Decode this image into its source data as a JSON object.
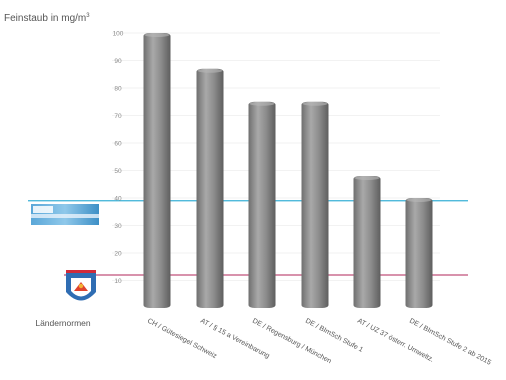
{
  "chart_data": {
    "type": "bar",
    "ylabel": "Feinstaub in mg/m",
    "ylabel_superscript": "3",
    "y_ticks": [
      "100",
      "90",
      "80",
      "70",
      "60",
      "50",
      "40",
      "30",
      "20",
      "10"
    ],
    "ylim": [
      0,
      100
    ],
    "grid": true,
    "categories": [
      "CH / Gütesiegel Schweiz",
      "AT / § 15 a Vereinbarung",
      "DE / Regensburg / München",
      "DE / BImSch Stufe 1",
      "AT / UZ 37 österr. Umweltz.",
      "DE / BImSch Stufe 2 ab 2015"
    ],
    "values": [
      100,
      87,
      75,
      75,
      48,
      40
    ],
    "bar_color": "#8a8a8a",
    "reference_lines": [
      {
        "value": 39,
        "color": "#3ab0d6"
      },
      {
        "value": 12,
        "color": "#c0507a"
      }
    ],
    "legend_caption": "Ländernormen"
  }
}
